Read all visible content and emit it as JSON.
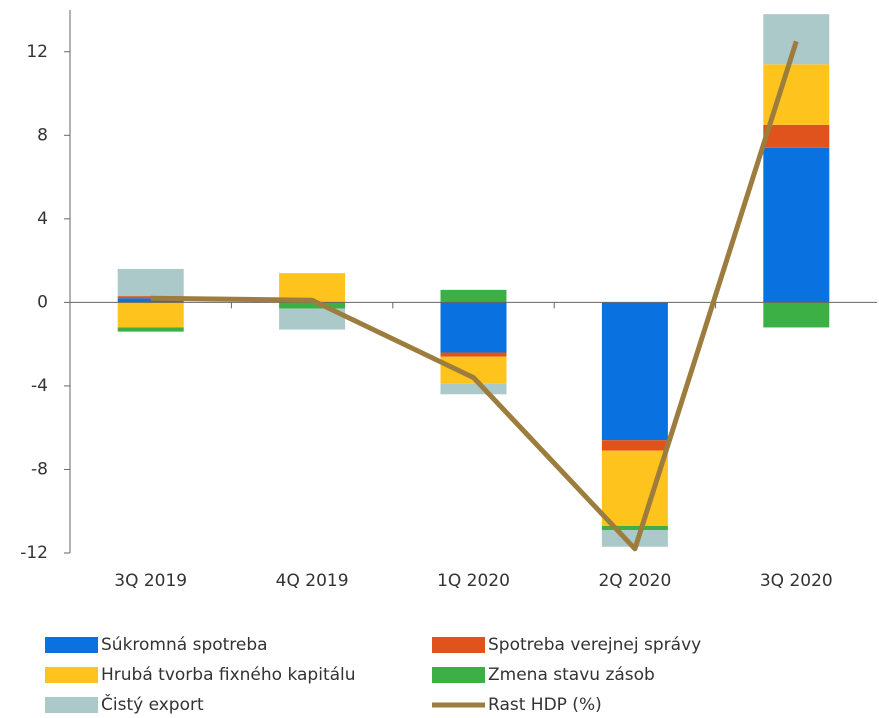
{
  "chart_data": {
    "type": "bar",
    "stacked": true,
    "categories": [
      "3Q 2019",
      "4Q 2019",
      "1Q 2020",
      "2Q 2020",
      "3Q 2020"
    ],
    "series": [
      {
        "name": "Súkromná spotreba",
        "color": "#0a72e0",
        "values": [
          0.2,
          0,
          -2.4,
          -6.6,
          7.4
        ]
      },
      {
        "name": "Spotreba verejnej správy",
        "color": "#e0531c",
        "values": [
          0.1,
          0,
          -0.2,
          -0.5,
          1.1
        ]
      },
      {
        "name": "Hrubá tvorba fixného kapitálu",
        "color": "#ffc31e",
        "values": [
          -1.2,
          1.4,
          -1.3,
          -3.6,
          2.9
        ]
      },
      {
        "name": "Zmena stavu zásob",
        "color": "#3db045",
        "values": [
          -0.2,
          -0.3,
          0.6,
          -0.2,
          -1.2
        ]
      },
      {
        "name": "Čistý export",
        "color": "#abc9c9",
        "values": [
          1.3,
          -1.0,
          -0.5,
          -0.8,
          2.4
        ]
      },
      {
        "name": "Rast HDP (%)",
        "type": "line",
        "color": "#9d7d3e",
        "values": [
          0.2,
          0.1,
          -3.6,
          -11.8,
          12.5
        ]
      }
    ],
    "ylim": [
      -12,
      14
    ],
    "yticks": [
      -12,
      -8,
      -4,
      0,
      4,
      8,
      12
    ],
    "legend": "bottom"
  }
}
